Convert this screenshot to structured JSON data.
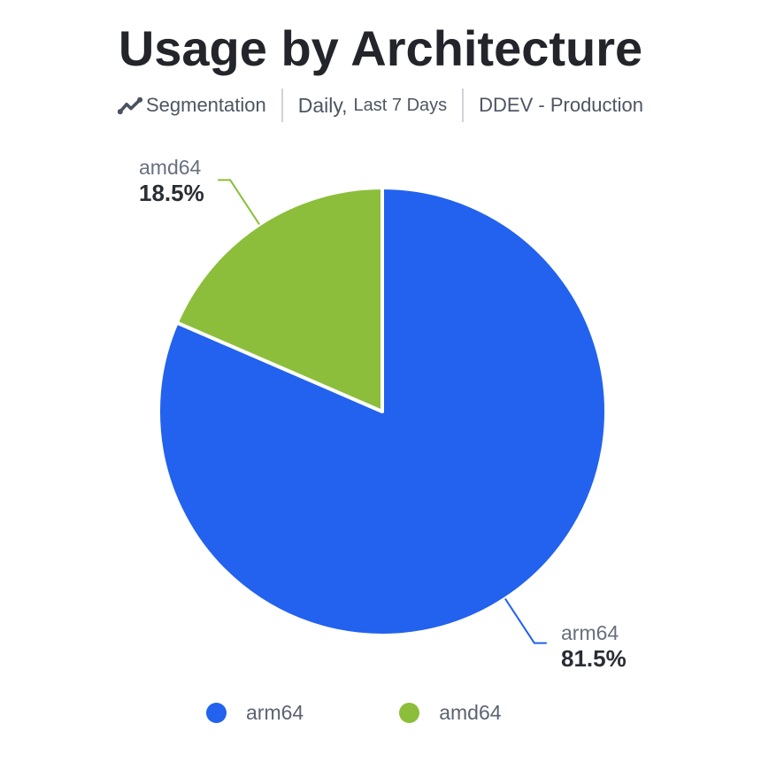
{
  "header": {
    "title": "Usage by Architecture"
  },
  "toolbar": {
    "segmentation_label": "Segmentation",
    "period_primary": "Daily,",
    "period_secondary": "Last 7 Days",
    "site_label": "DDEV - Production"
  },
  "chart_data": {
    "type": "pie",
    "title": "Usage by Architecture",
    "labels": [
      "arm64",
      "amd64"
    ],
    "values": [
      81.5,
      18.5
    ],
    "unit": "%",
    "colors": [
      "#2262EE",
      "#8CBE3B"
    ],
    "start_angle": "top",
    "direction": "clockwise",
    "legend_position": "bottom",
    "callout_labels": [
      {
        "name": "arm64",
        "percent": "81.5%"
      },
      {
        "name": "amd64",
        "percent": "18.5%"
      }
    ]
  },
  "legend": {
    "items": [
      {
        "label": "arm64",
        "color": "#2262EE"
      },
      {
        "label": "amd64",
        "color": "#8CBE3B"
      }
    ]
  },
  "icon_colors": {
    "trend_icon": "#4A5160"
  }
}
